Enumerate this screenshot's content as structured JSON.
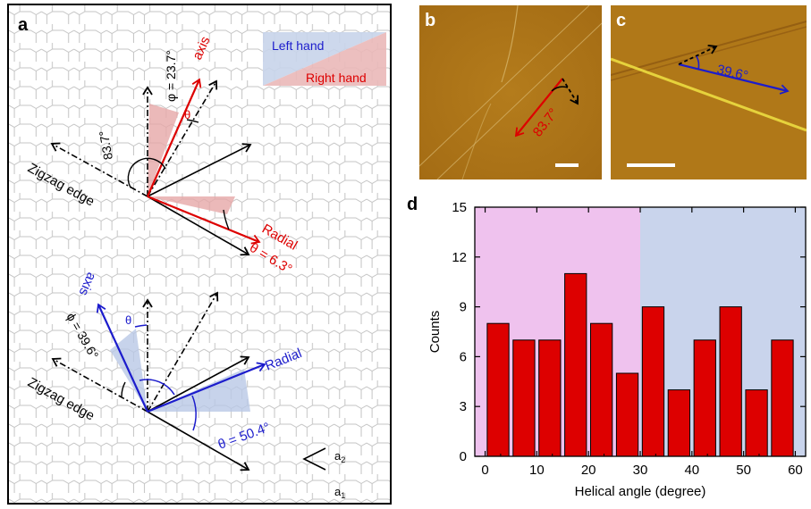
{
  "panel_a": {
    "letter": "a",
    "legend": {
      "left_hand": "Left hand",
      "right_hand": "Right hand"
    },
    "top": {
      "phi": "φ = 23.7°",
      "axis": "axis",
      "theta_small": "θ",
      "angle_83": "83.7°",
      "zigzag": "Zigzag edge",
      "radial": "Radial",
      "theta_value": "θ = 6.3°"
    },
    "bottom": {
      "axis": "axis",
      "theta_small": "θ",
      "phi": "ϕ = 39.6°",
      "zigzag": "Zigzag edge",
      "radial": "Radial",
      "theta_value": "θ = 50.4°"
    },
    "lattice_vectors": {
      "a2": "a",
      "a2_sub": "2",
      "a1": "a",
      "a1_sub": "1"
    }
  },
  "panel_b": {
    "letter": "b",
    "angle": "83.7°"
  },
  "panel_c": {
    "letter": "c",
    "angle": "39.6°"
  },
  "panel_d": {
    "letter": "d"
  },
  "colors": {
    "red": "#dd0000",
    "blue": "#1c1ccc",
    "left_hand_fill": "#c8d4ea",
    "right_hand_fill": "#eab8b8",
    "hist_pink": "#efc2ee",
    "hist_blue": "#c9d4ec",
    "bar": "#dd0000",
    "afm_bg": "#b07818"
  },
  "chart_data": {
    "type": "bar",
    "xlabel": "Helical angle (degree)",
    "ylabel": "Counts",
    "xlim": [
      -2,
      62
    ],
    "ylim": [
      0,
      15
    ],
    "xticks": [
      0,
      10,
      20,
      30,
      40,
      50,
      60
    ],
    "yticks": [
      0,
      3,
      6,
      9,
      12,
      15
    ],
    "bin_width": 5,
    "categories": [
      2.5,
      7.5,
      12.5,
      17.5,
      22.5,
      27.5,
      32.5,
      37.5,
      42.5,
      47.5,
      52.5,
      57.5
    ],
    "values": [
      8,
      7,
      7,
      11,
      8,
      5,
      9,
      4,
      7,
      9,
      4,
      7
    ],
    "regions": [
      {
        "from": -2,
        "to": 30,
        "color": "#efc2ee"
      },
      {
        "from": 30,
        "to": 62,
        "color": "#c9d4ec"
      }
    ]
  }
}
